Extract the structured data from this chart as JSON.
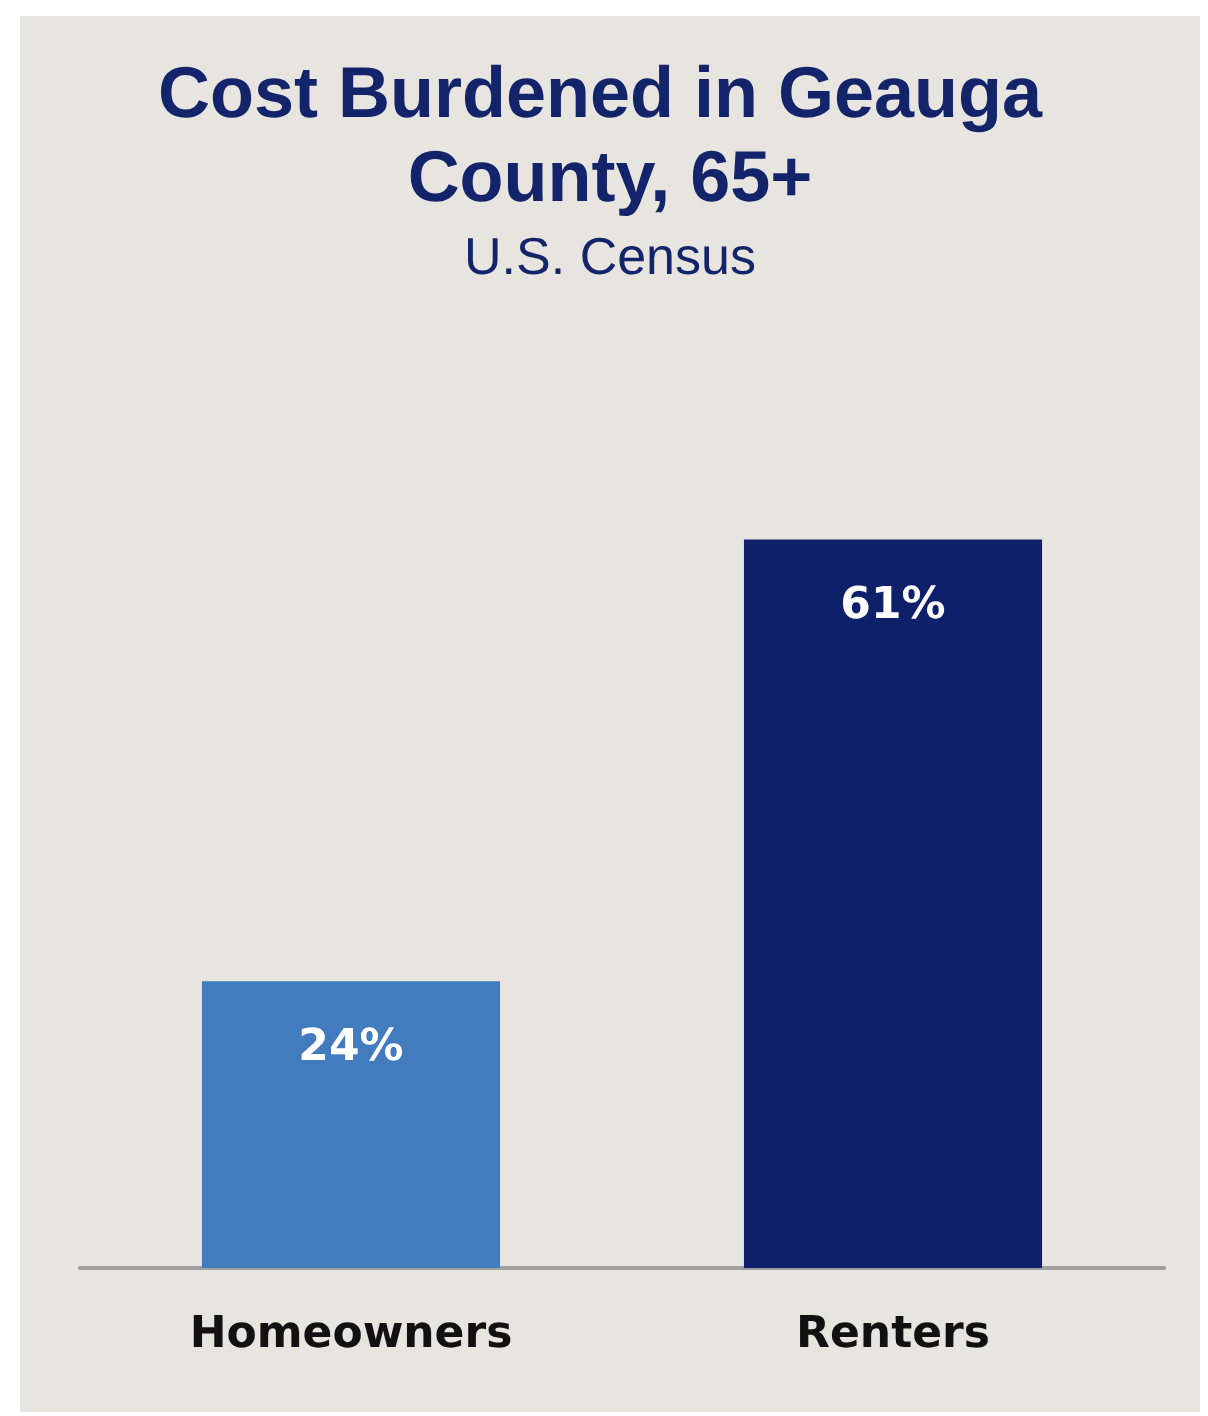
{
  "chart_data": {
    "type": "bar",
    "title": "Cost Burdened in Geauga County, 65+",
    "subtitle": "U.S. Census",
    "categories": [
      "Homeowners",
      "Renters"
    ],
    "values": [
      24,
      61
    ],
    "colors": [
      "#437bbf",
      "#0f206a"
    ],
    "value_labels": [
      "24%",
      "61%"
    ],
    "tick_labels": "x"
  }
}
